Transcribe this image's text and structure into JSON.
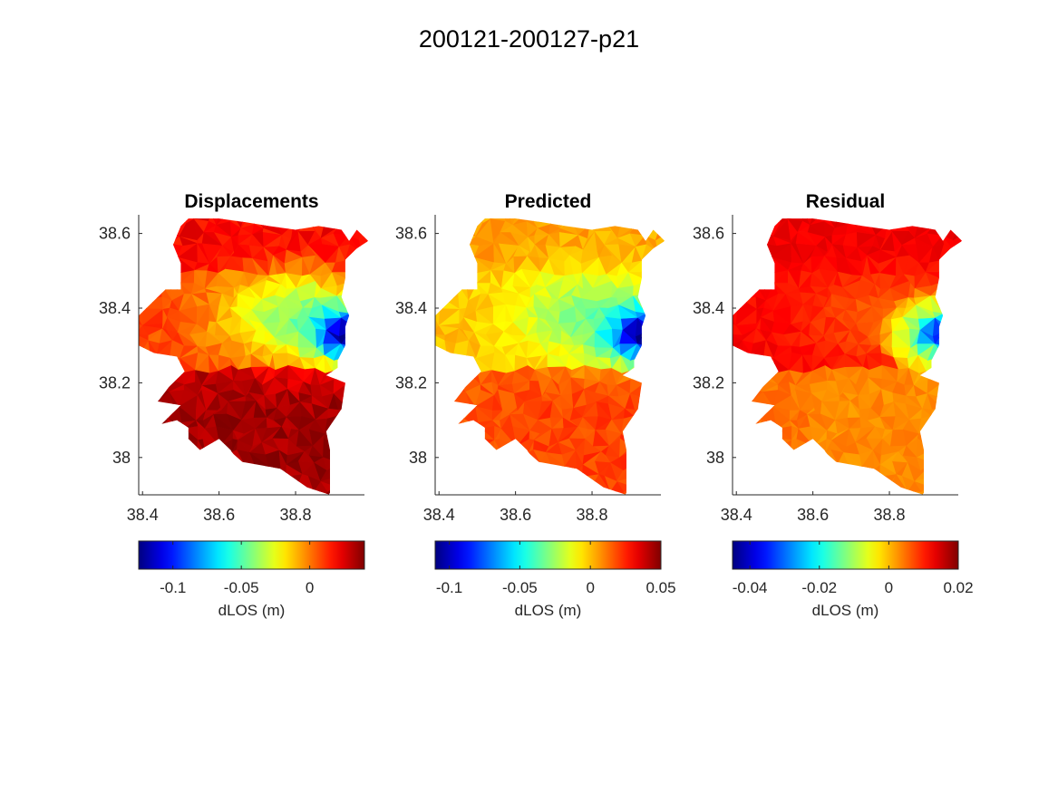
{
  "figure": {
    "title": "200121-200127-p21"
  },
  "chart_data": [
    {
      "type": "heatmap",
      "title": "Displacements",
      "xlabel": "",
      "ylabel": "",
      "xticks": [
        "38.4",
        "38.6",
        "38.8"
      ],
      "yticks": [
        "38.6",
        "38.4",
        "38.2",
        "38"
      ],
      "xlim": [
        38.39,
        38.98
      ],
      "ylim": [
        37.9,
        38.65
      ],
      "colormap": "jet",
      "colorbar": {
        "label": "dLOS (m)",
        "range": [
          -0.125,
          0.04
        ],
        "ticks": [
          "-0.1",
          "-0.05",
          "0"
        ]
      },
      "field": {
        "west": 0.01,
        "north": 0.02,
        "south": 0.035,
        "center": -0.04,
        "east_min": -0.125,
        "east_rim": -0.03
      }
    },
    {
      "type": "heatmap",
      "title": "Predicted",
      "xlabel": "",
      "ylabel": "",
      "xticks": [
        "38.4",
        "38.6",
        "38.8"
      ],
      "yticks": [
        "38.6",
        "38.4",
        "38.2",
        "38"
      ],
      "xlim": [
        38.39,
        38.98
      ],
      "ylim": [
        37.9,
        38.65
      ],
      "colormap": "jet",
      "colorbar": {
        "label": "dLOS (m)",
        "range": [
          -0.11,
          0.05
        ],
        "ticks": [
          "-0.1",
          "-0.05",
          "0",
          "0.05"
        ]
      },
      "field": {
        "west": 0.0,
        "north": 0.005,
        "south": 0.02,
        "center": -0.03,
        "east_min": -0.11,
        "east_rim": -0.02
      }
    },
    {
      "type": "heatmap",
      "title": "Residual",
      "xlabel": "",
      "ylabel": "",
      "xticks": [
        "38.4",
        "38.6",
        "38.8"
      ],
      "yticks": [
        "38.6",
        "38.4",
        "38.2",
        "38"
      ],
      "xlim": [
        38.39,
        38.98
      ],
      "ylim": [
        37.9,
        38.65
      ],
      "colormap": "jet",
      "colorbar": {
        "label": "dLOS (m)",
        "range": [
          -0.045,
          0.02
        ],
        "ticks": [
          "-0.04",
          "-0.02",
          "0",
          "0.02"
        ]
      },
      "field": {
        "west": 0.012,
        "north": 0.013,
        "south": 0.003,
        "center": 0.006,
        "east_min": -0.035,
        "east_rim": -0.01
      }
    }
  ]
}
